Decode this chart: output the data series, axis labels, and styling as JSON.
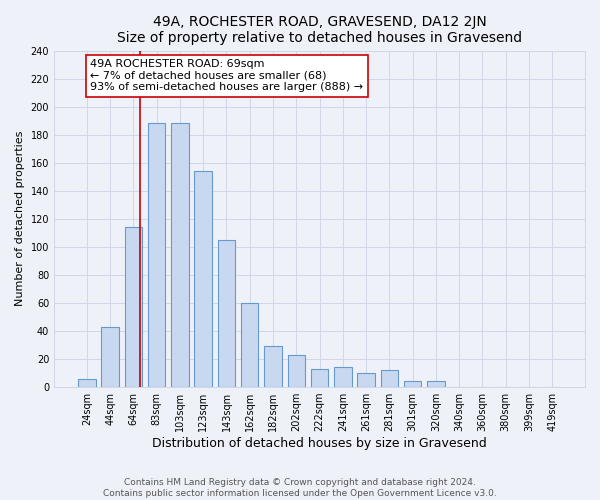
{
  "title": "49A, ROCHESTER ROAD, GRAVESEND, DA12 2JN",
  "subtitle": "Size of property relative to detached houses in Gravesend",
  "xlabel": "Distribution of detached houses by size in Gravesend",
  "ylabel": "Number of detached properties",
  "bar_labels": [
    "24sqm",
    "44sqm",
    "64sqm",
    "83sqm",
    "103sqm",
    "123sqm",
    "143sqm",
    "162sqm",
    "182sqm",
    "202sqm",
    "222sqm",
    "241sqm",
    "261sqm",
    "281sqm",
    "301sqm",
    "320sqm",
    "340sqm",
    "360sqm",
    "380sqm",
    "399sqm",
    "419sqm"
  ],
  "bar_values": [
    6,
    43,
    114,
    188,
    188,
    154,
    105,
    60,
    29,
    23,
    13,
    14,
    10,
    12,
    4,
    4,
    0,
    0,
    0,
    0,
    0
  ],
  "bar_color": "#c8d8f0",
  "bar_edge_color": "#6699cc",
  "grid_color": "#d0d8e8",
  "background_color": "#eef2f8",
  "property_label": "49A ROCHESTER ROAD: 69sqm",
  "annotation_line1": "← 7% of detached houses are smaller (68)",
  "annotation_line2": "93% of semi-detached houses are larger (888) →",
  "vline_color": "#cc0000",
  "annotation_box_edge": "#cc0000",
  "annotation_box_fill": "#ffffff",
  "ylim": [
    0,
    240
  ],
  "yticks": [
    0,
    20,
    40,
    60,
    80,
    100,
    120,
    140,
    160,
    180,
    200,
    220,
    240
  ],
  "footer_line1": "Contains HM Land Registry data © Crown copyright and database right 2024.",
  "footer_line2": "Contains public sector information licensed under the Open Government Licence v3.0.",
  "title_fontsize": 10,
  "subtitle_fontsize": 9,
  "xlabel_fontsize": 9,
  "ylabel_fontsize": 8,
  "tick_fontsize": 7,
  "footer_fontsize": 6.5,
  "annotation_fontsize": 8,
  "vline_x": 2.3,
  "bar_width": 0.75
}
